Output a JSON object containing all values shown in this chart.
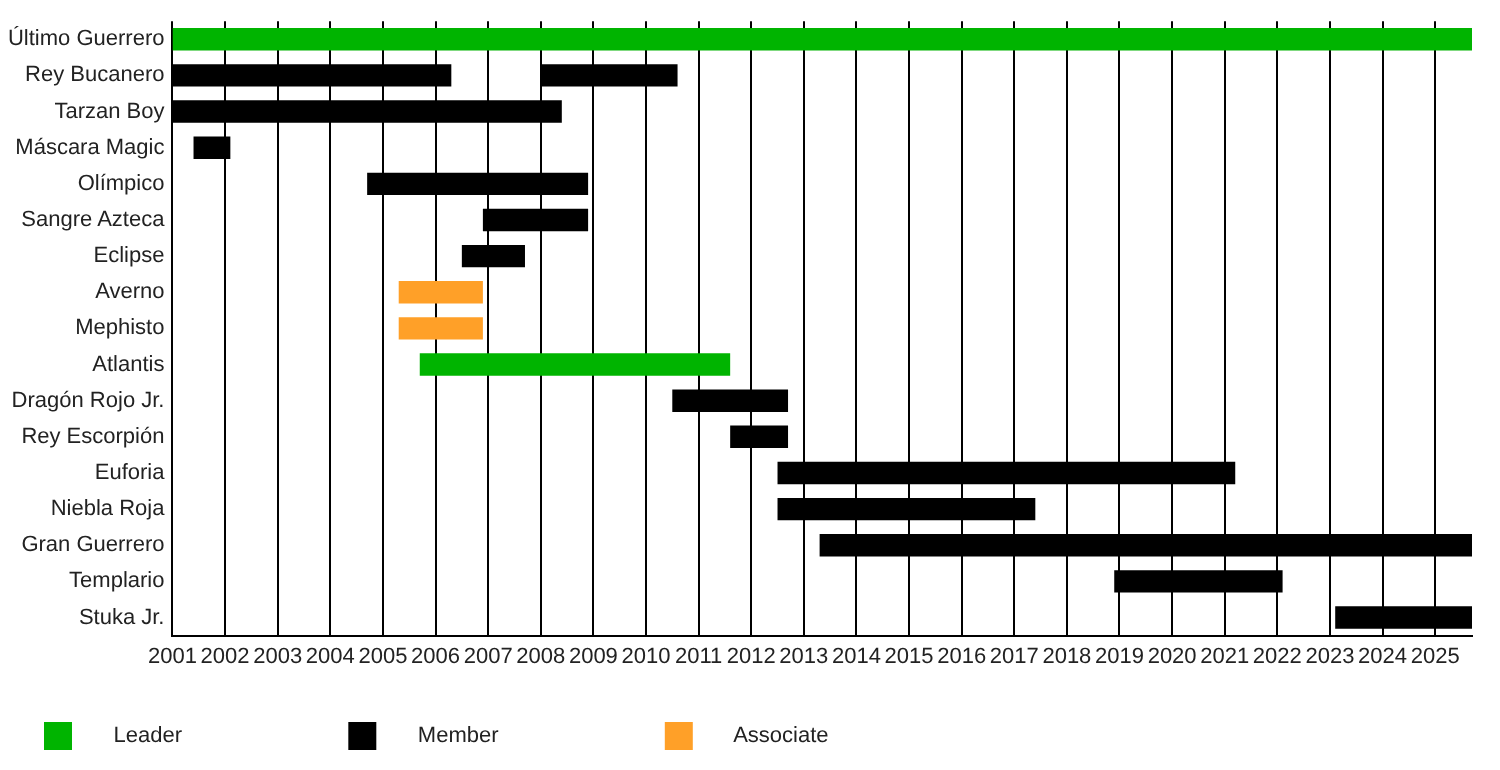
{
  "chart_data": {
    "type": "bar",
    "orientation": "horizontal",
    "categories": [
      "Último Guerrero",
      "Rey Bucanero",
      "Tarzan Boy",
      "Máscara Magic",
      "Olímpico",
      "Sangre Azteca",
      "Eclipse",
      "Averno",
      "Mephisto",
      "Atlantis",
      "Dragón Rojo Jr.",
      "Rey Escorpión",
      "Euforia",
      "Niebla Roja",
      "Gran Guerrero",
      "Templario",
      "Stuka Jr."
    ],
    "series": [
      {
        "name": "Leader",
        "color": "#00b400",
        "base": [
          2001,
          null,
          null,
          null,
          null,
          null,
          null,
          null,
          null,
          2005.7,
          null,
          null,
          null,
          null,
          null,
          null,
          null
        ],
        "values": [
          24.7,
          null,
          null,
          null,
          null,
          null,
          null,
          null,
          null,
          5.9,
          null,
          null,
          null,
          null,
          null,
          null,
          null
        ]
      },
      {
        "name": "Member",
        "color": "#000000",
        "base": [
          null,
          2001,
          2001,
          2001.4,
          2004.7,
          2006.9,
          2006.5,
          null,
          null,
          null,
          2010.5,
          2011.6,
          2012.5,
          2012.5,
          2013.3,
          2018.9,
          2023.1
        ],
        "values": [
          null,
          5.3,
          7.4,
          0.7,
          4.2,
          2.0,
          1.2,
          null,
          null,
          null,
          2.2,
          1.1,
          8.7,
          4.9,
          12.4,
          3.2,
          2.6
        ]
      },
      {
        "name": "Associate",
        "color": "#ffa028",
        "base": [
          null,
          null,
          null,
          null,
          null,
          null,
          null,
          2005.3,
          2005.3,
          null,
          null,
          null,
          null,
          null,
          null,
          null,
          null
        ],
        "values": [
          null,
          null,
          null,
          null,
          null,
          null,
          null,
          1.6,
          1.6,
          null,
          null,
          null,
          null,
          null,
          null,
          null,
          null
        ]
      },
      {
        "color": "#000000",
        "base": [
          null,
          2008,
          null,
          null,
          null,
          null,
          null,
          null,
          null,
          null,
          null,
          null,
          null,
          null,
          null,
          null,
          null
        ],
        "values": [
          null,
          2.6,
          null,
          null,
          null,
          null,
          null,
          null,
          null,
          null,
          null,
          null,
          null,
          null,
          null,
          null,
          null
        ]
      }
    ],
    "xlim": [
      2001,
      2025.7
    ],
    "xticks": [
      2001,
      2002,
      2003,
      2004,
      2005,
      2006,
      2007,
      2008,
      2009,
      2010,
      2011,
      2012,
      2013,
      2014,
      2015,
      2016,
      2017,
      2018,
      2019,
      2020,
      2021,
      2022,
      2023,
      2024,
      2025
    ],
    "grid": "x",
    "legend": "bottom left"
  }
}
